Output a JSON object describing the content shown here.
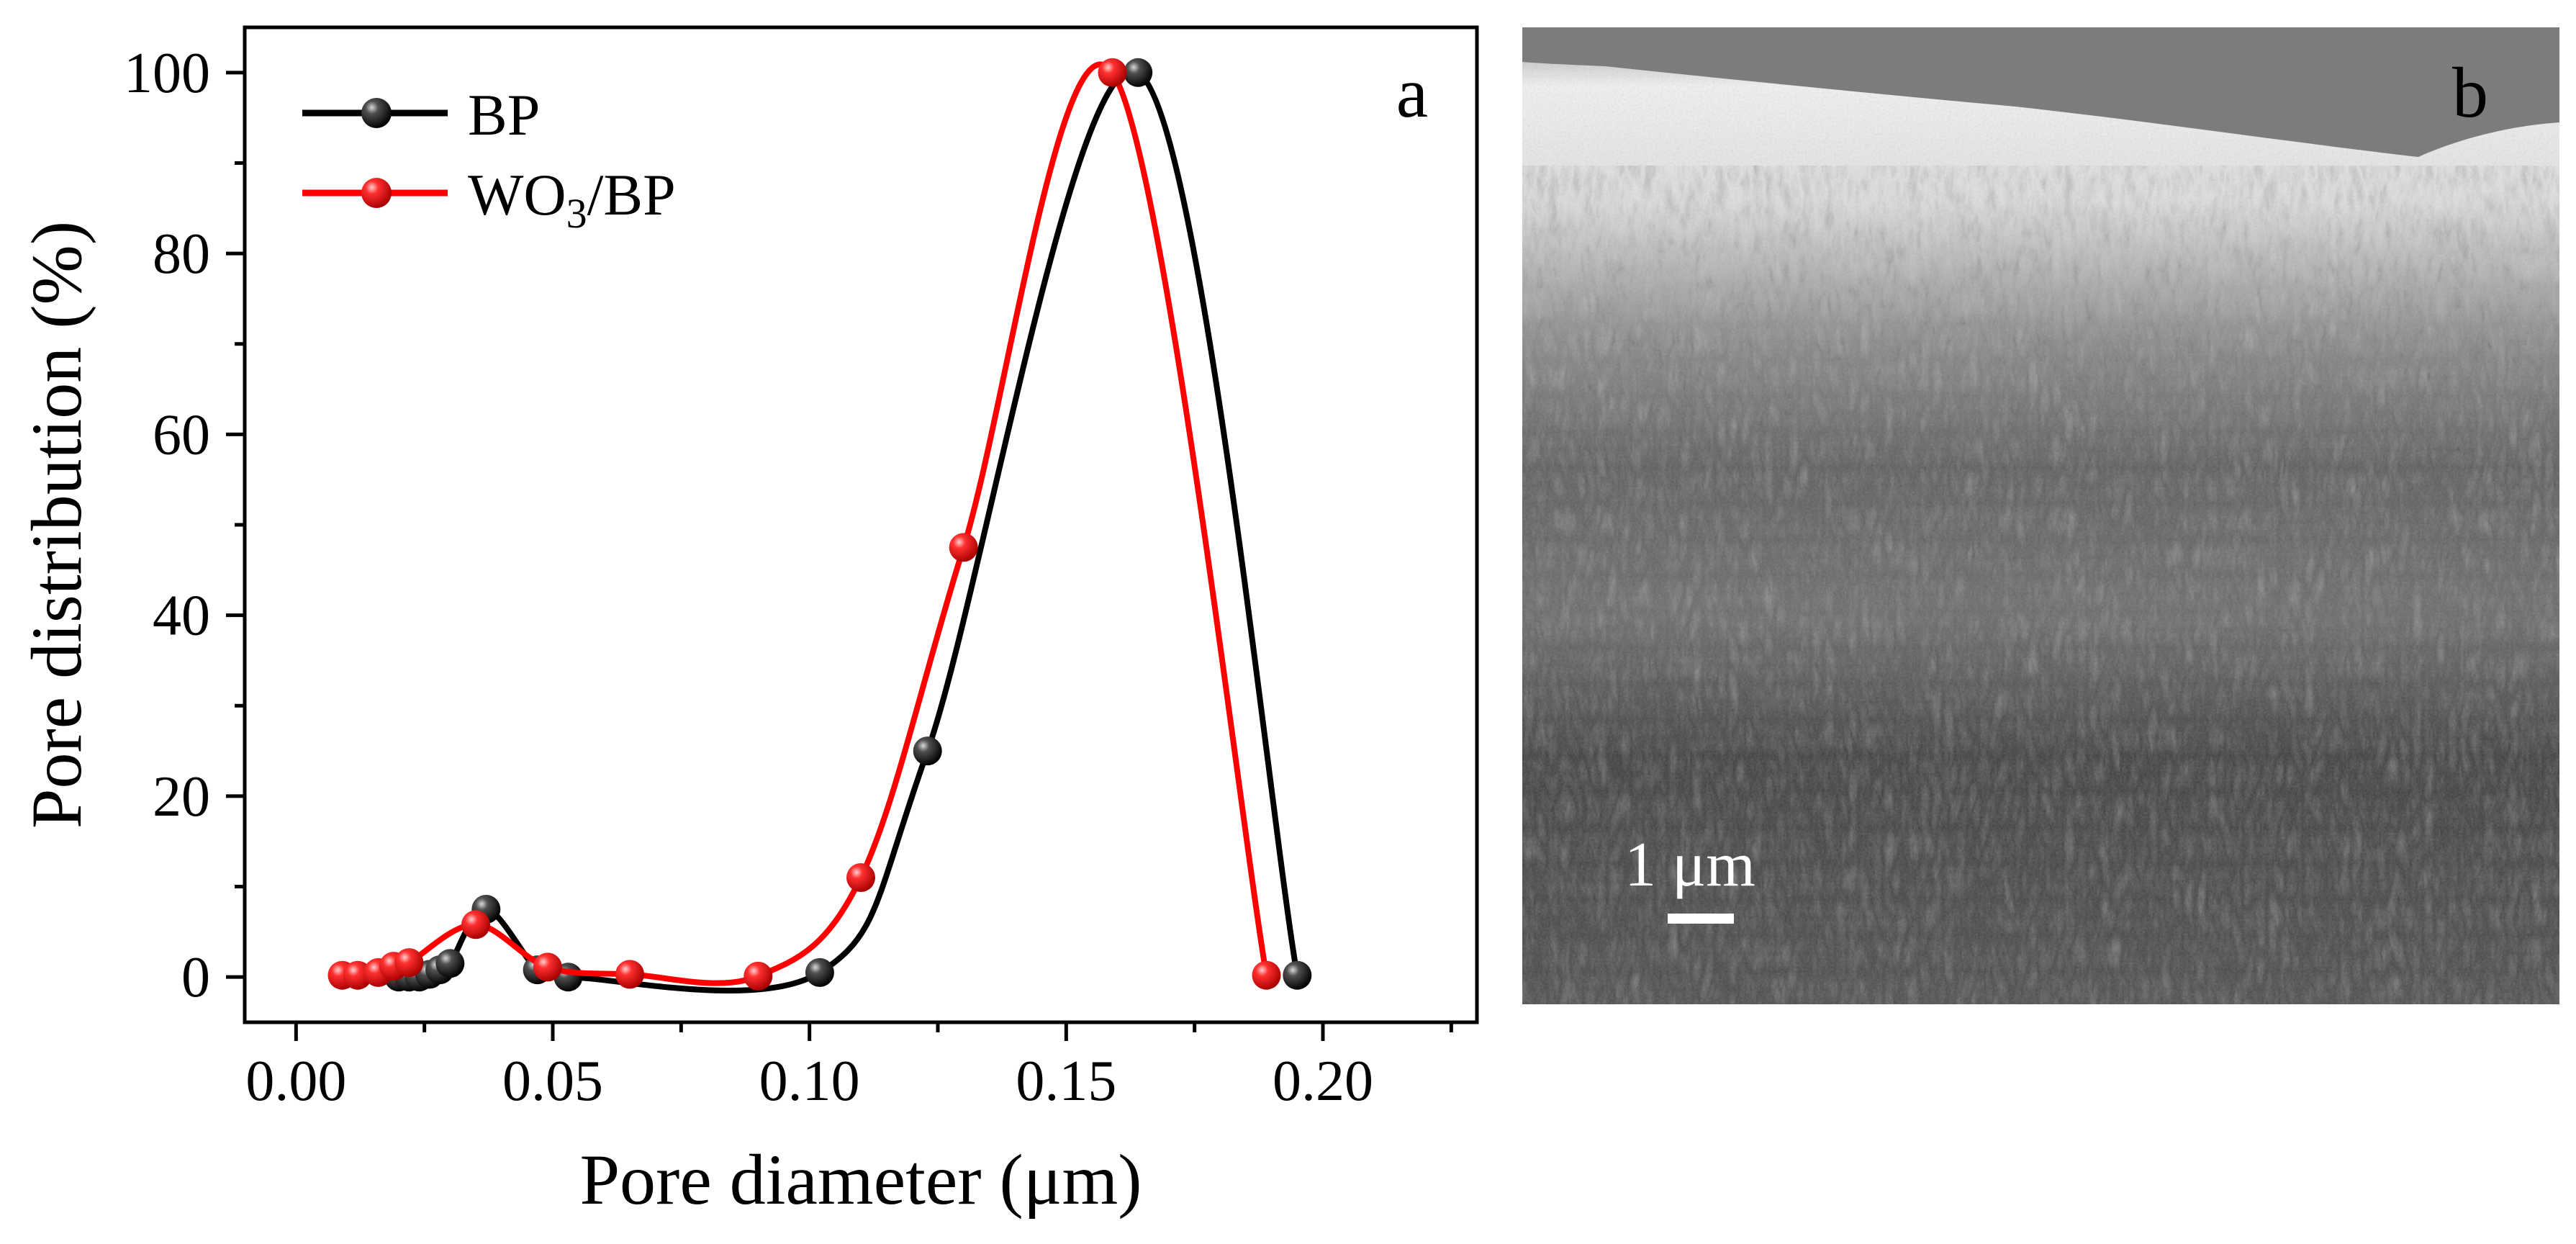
{
  "chart_data": {
    "type": "line",
    "panel_label": "a",
    "xlabel": "Pore diameter (μm)",
    "ylabel": "Pore distribution (%)",
    "xlim": [
      -0.01,
      0.23
    ],
    "ylim": [
      -5,
      105
    ],
    "xticks": [
      "0.00",
      "0.05",
      "0.10",
      "0.15",
      "0.20"
    ],
    "yticks": [
      "0",
      "20",
      "40",
      "60",
      "80",
      "100"
    ],
    "grid": false,
    "legend_position": "top-left",
    "series": [
      {
        "name": "BP",
        "name_parts": {
          "main": "BP",
          "sub": "",
          "rest": ""
        },
        "color": "#000000",
        "x": [
          0.02,
          0.022,
          0.024,
          0.026,
          0.028,
          0.03,
          0.037,
          0.047,
          0.053,
          0.102,
          0.123,
          0.164,
          0.195
        ],
        "y": [
          0,
          0,
          0,
          0.3,
          0.8,
          1.5,
          7.5,
          0.8,
          0,
          0.5,
          25,
          100,
          0.2
        ]
      },
      {
        "name": "WO3/BP",
        "name_parts": {
          "main": "WO",
          "sub": "3",
          "rest": "/BP"
        },
        "color": "#ff0000",
        "x": [
          0.009,
          0.012,
          0.016,
          0.019,
          0.022,
          0.035,
          0.049,
          0.065,
          0.09,
          0.11,
          0.13,
          0.159,
          0.189
        ],
        "y": [
          0.2,
          0.2,
          0.5,
          1.2,
          1.6,
          5.8,
          1.1,
          0.3,
          0.1,
          11,
          47.5,
          100,
          0.2
        ]
      }
    ]
  },
  "panel_b": {
    "label": "b",
    "image_description": "SEM",
    "scale_bar_text": "1 μm"
  },
  "colors": {
    "bp": "#000000",
    "wo3bp": "#ff0000",
    "axis": "#000000",
    "sem_background": "#3a3a3a"
  }
}
